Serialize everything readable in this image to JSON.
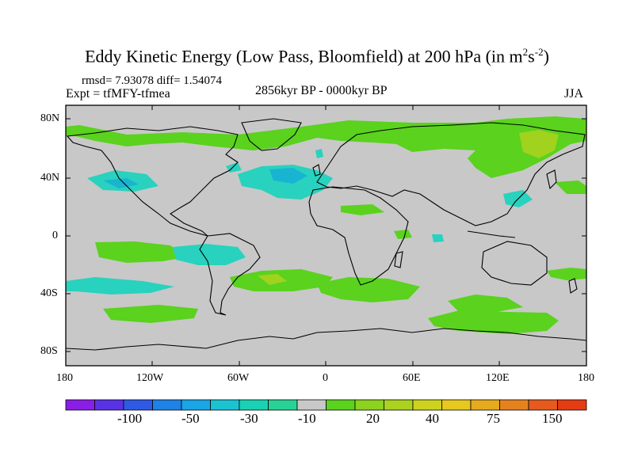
{
  "title": {
    "main": "Eddy Kinetic Energy (Low Pass, Bloomfield) at 200 hPa (in m",
    "sup1": "2",
    "mid": "s",
    "sup2": "-2",
    "end": ")"
  },
  "stats": "rmsd= 7.93078 diff= 1.54074",
  "expt": "Expt = tfMFY-tfmea",
  "period": "2856kyr BP - 0000kyr BP",
  "season": "JJA",
  "lat_ticks": [
    "80N",
    "40N",
    "0",
    "40S",
    "80S"
  ],
  "lon_ticks": [
    "180",
    "120W",
    "60W",
    "0",
    "60E",
    "120E",
    "180"
  ],
  "colorbar": {
    "colors": [
      "#8b1ee6",
      "#5a32e6",
      "#2e5ae6",
      "#1e82e6",
      "#19a5e6",
      "#19c3d2",
      "#19d2b4",
      "#28d296",
      "#c8c8c8",
      "#5ad21e",
      "#8cd21e",
      "#aad21e",
      "#cdd21e",
      "#e6c81e",
      "#e6aa1e",
      "#e6821e",
      "#e65a1e",
      "#e63c14"
    ],
    "labels": [
      "-100",
      "-50",
      "-30",
      "-10",
      "20",
      "40",
      "75",
      "150"
    ]
  },
  "colors": {
    "background": "#c8c8c8",
    "green": "#5ad21e",
    "lime": "#a0d21e",
    "cyan": "#28d2be",
    "cyan_dark": "#19c3c8",
    "coast": "#000000"
  }
}
